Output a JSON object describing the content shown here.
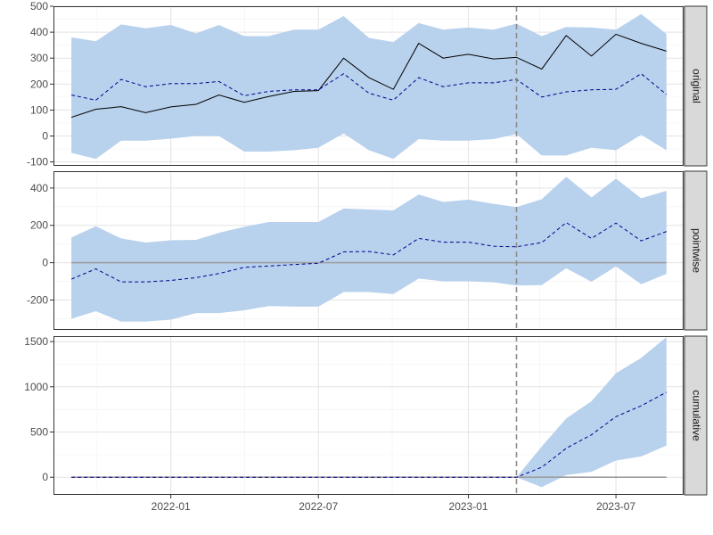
{
  "chart_data": {
    "type": "area",
    "x_axis": {
      "ticks": [
        "2022-01",
        "2022-07",
        "2023-01",
        "2023-07"
      ],
      "range": [
        "2021-08-10",
        "2023-09-22"
      ]
    },
    "dates": [
      "2021-09-01",
      "2021-10-01",
      "2021-11-01",
      "2021-12-01",
      "2022-01-01",
      "2022-02-01",
      "2022-03-01",
      "2022-04-01",
      "2022-05-01",
      "2022-06-01",
      "2022-07-01",
      "2022-08-01",
      "2022-09-01",
      "2022-10-01",
      "2022-11-01",
      "2022-12-01",
      "2023-01-01",
      "2023-02-01",
      "2023-03-01",
      "2023-04-01",
      "2023-05-01",
      "2023-06-01",
      "2023-07-01",
      "2023-08-01",
      "2023-09-01"
    ],
    "intervention_date": "2023-03-01",
    "band_color": "#b8d1ed",
    "mean_color": "#00008b",
    "observed_color": "#000000",
    "zero_line_color": "#9e9e9e",
    "panels": [
      {
        "strip": "original",
        "ylim": [
          -115,
          500
        ],
        "yticks": [
          -100,
          0,
          100,
          200,
          300,
          400,
          500
        ],
        "observed": [
          72,
          103,
          113,
          90,
          112,
          122,
          158,
          130,
          152,
          172,
          175,
          300,
          225,
          180,
          357,
          300,
          315,
          297,
          303,
          258,
          387,
          308,
          392,
          357,
          327
        ],
        "mean": [
          158,
          138,
          218,
          190,
          202,
          202,
          210,
          155,
          172,
          178,
          178,
          240,
          165,
          138,
          225,
          190,
          205,
          205,
          218,
          150,
          170,
          178,
          180,
          240,
          160
        ],
        "upper": [
          380,
          365,
          430,
          415,
          428,
          395,
          428,
          385,
          385,
          410,
          410,
          462,
          378,
          362,
          435,
          410,
          418,
          410,
          433,
          385,
          420,
          418,
          410,
          470,
          393
        ],
        "lower": [
          -65,
          -88,
          -18,
          -18,
          -10,
          0,
          0,
          -60,
          -60,
          -55,
          -45,
          10,
          -55,
          -88,
          -12,
          -18,
          -18,
          -12,
          8,
          -75,
          -75,
          -45,
          -55,
          5,
          -55
        ]
      },
      {
        "strip": "pointwise",
        "ylim": [
          -360,
          490
        ],
        "yticks": [
          -200,
          0,
          200,
          400
        ],
        "zero_line": true,
        "mean": [
          -88,
          -33,
          -103,
          -103,
          -95,
          -80,
          -58,
          -25,
          -18,
          -10,
          -3,
          58,
          60,
          42,
          130,
          110,
          110,
          88,
          85,
          108,
          215,
          130,
          212,
          117,
          167
        ],
        "upper": [
          135,
          195,
          130,
          108,
          120,
          122,
          160,
          192,
          218,
          218,
          218,
          290,
          285,
          280,
          365,
          325,
          338,
          315,
          298,
          340,
          460,
          350,
          450,
          345,
          385
        ],
        "lower": [
          -300,
          -260,
          -315,
          -315,
          -305,
          -270,
          -270,
          -255,
          -232,
          -235,
          -235,
          -157,
          -157,
          -168,
          -85,
          -100,
          -100,
          -105,
          -122,
          -120,
          -30,
          -102,
          -20,
          -115,
          -60
        ]
      },
      {
        "strip": "cumulative",
        "ylim": [
          -195,
          1560
        ],
        "yticks": [
          0,
          500,
          1000,
          1500
        ],
        "zero_line": true,
        "mean": [
          0,
          0,
          0,
          0,
          0,
          0,
          0,
          0,
          0,
          0,
          0,
          0,
          0,
          0,
          0,
          0,
          0,
          0,
          0,
          110,
          320,
          470,
          670,
          790,
          940
        ],
        "upper": [
          0,
          0,
          0,
          0,
          0,
          0,
          0,
          0,
          0,
          0,
          0,
          0,
          0,
          0,
          0,
          0,
          0,
          0,
          0,
          340,
          650,
          840,
          1150,
          1320,
          1550
        ],
        "lower": [
          0,
          0,
          0,
          0,
          0,
          0,
          0,
          0,
          0,
          0,
          0,
          0,
          0,
          0,
          0,
          0,
          0,
          0,
          0,
          -110,
          25,
          60,
          185,
          230,
          350
        ]
      }
    ]
  }
}
